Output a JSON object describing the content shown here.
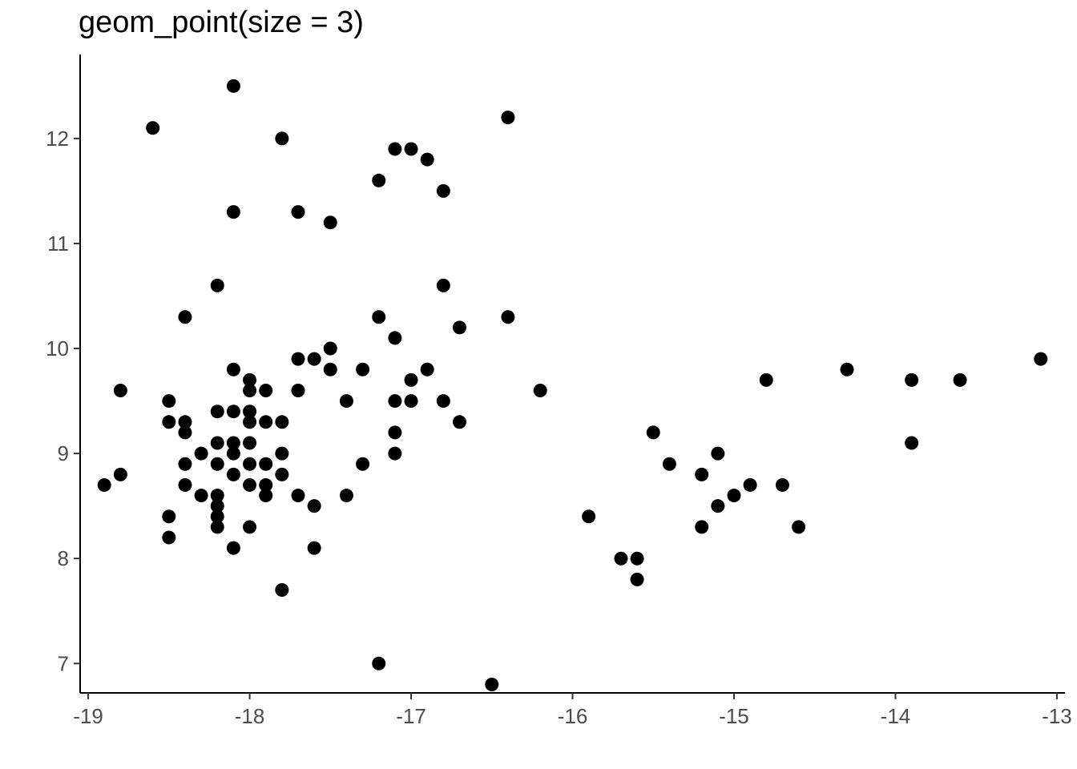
{
  "chart_data": {
    "type": "scatter",
    "title": "geom_point(size = 3)",
    "xlabel": "",
    "ylabel": "",
    "xlim": [
      -19.05,
      -12.95
    ],
    "ylim": [
      6.72,
      12.8
    ],
    "x_ticks": [
      -19,
      -18,
      -17,
      -16,
      -15,
      -14,
      -13
    ],
    "y_ticks": [
      7,
      8,
      9,
      10,
      11,
      12
    ],
    "grid": false,
    "point_color": "#000000",
    "points": [
      {
        "x": -18.1,
        "y": 12.5
      },
      {
        "x": -18.6,
        "y": 12.1
      },
      {
        "x": -17.8,
        "y": 12.0
      },
      {
        "x": -16.4,
        "y": 12.2
      },
      {
        "x": -17.1,
        "y": 11.9
      },
      {
        "x": -17.0,
        "y": 11.9
      },
      {
        "x": -16.9,
        "y": 11.8
      },
      {
        "x": -17.2,
        "y": 11.6
      },
      {
        "x": -16.8,
        "y": 11.5
      },
      {
        "x": -18.1,
        "y": 11.3
      },
      {
        "x": -17.7,
        "y": 11.3
      },
      {
        "x": -17.5,
        "y": 11.2
      },
      {
        "x": -18.2,
        "y": 10.6
      },
      {
        "x": -16.8,
        "y": 10.6
      },
      {
        "x": -18.4,
        "y": 10.3
      },
      {
        "x": -17.2,
        "y": 10.3
      },
      {
        "x": -16.4,
        "y": 10.3
      },
      {
        "x": -16.7,
        "y": 10.2
      },
      {
        "x": -17.1,
        "y": 10.1
      },
      {
        "x": -17.5,
        "y": 10.0
      },
      {
        "x": -17.7,
        "y": 9.9
      },
      {
        "x": -17.6,
        "y": 9.9
      },
      {
        "x": -13.1,
        "y": 9.9
      },
      {
        "x": -18.1,
        "y": 9.8
      },
      {
        "x": -17.5,
        "y": 9.8
      },
      {
        "x": -17.3,
        "y": 9.8
      },
      {
        "x": -16.9,
        "y": 9.8
      },
      {
        "x": -14.3,
        "y": 9.8
      },
      {
        "x": -18.0,
        "y": 9.7
      },
      {
        "x": -17.0,
        "y": 9.7
      },
      {
        "x": -14.8,
        "y": 9.7
      },
      {
        "x": -13.9,
        "y": 9.7
      },
      {
        "x": -13.6,
        "y": 9.7
      },
      {
        "x": -18.8,
        "y": 9.6
      },
      {
        "x": -18.0,
        "y": 9.6
      },
      {
        "x": -17.9,
        "y": 9.6
      },
      {
        "x": -17.7,
        "y": 9.6
      },
      {
        "x": -16.2,
        "y": 9.6
      },
      {
        "x": -18.5,
        "y": 9.5
      },
      {
        "x": -17.4,
        "y": 9.5
      },
      {
        "x": -17.1,
        "y": 9.5
      },
      {
        "x": -17.0,
        "y": 9.5
      },
      {
        "x": -16.8,
        "y": 9.5
      },
      {
        "x": -18.2,
        "y": 9.4
      },
      {
        "x": -18.1,
        "y": 9.4
      },
      {
        "x": -18.0,
        "y": 9.4
      },
      {
        "x": -18.5,
        "y": 9.3
      },
      {
        "x": -18.4,
        "y": 9.3
      },
      {
        "x": -18.0,
        "y": 9.3
      },
      {
        "x": -17.9,
        "y": 9.3
      },
      {
        "x": -17.8,
        "y": 9.3
      },
      {
        "x": -16.7,
        "y": 9.3
      },
      {
        "x": -18.4,
        "y": 9.2
      },
      {
        "x": -17.1,
        "y": 9.2
      },
      {
        "x": -15.5,
        "y": 9.2
      },
      {
        "x": -18.2,
        "y": 9.1
      },
      {
        "x": -18.1,
        "y": 9.1
      },
      {
        "x": -18.0,
        "y": 9.1
      },
      {
        "x": -13.9,
        "y": 9.1
      },
      {
        "x": -18.3,
        "y": 9.0
      },
      {
        "x": -18.1,
        "y": 9.0
      },
      {
        "x": -17.8,
        "y": 9.0
      },
      {
        "x": -17.1,
        "y": 9.0
      },
      {
        "x": -15.1,
        "y": 9.0
      },
      {
        "x": -18.4,
        "y": 8.9
      },
      {
        "x": -18.2,
        "y": 8.9
      },
      {
        "x": -18.0,
        "y": 8.9
      },
      {
        "x": -17.9,
        "y": 8.9
      },
      {
        "x": -17.3,
        "y": 8.9
      },
      {
        "x": -15.4,
        "y": 8.9
      },
      {
        "x": -18.8,
        "y": 8.8
      },
      {
        "x": -18.1,
        "y": 8.8
      },
      {
        "x": -17.8,
        "y": 8.8
      },
      {
        "x": -15.2,
        "y": 8.8
      },
      {
        "x": -18.9,
        "y": 8.7
      },
      {
        "x": -18.4,
        "y": 8.7
      },
      {
        "x": -18.0,
        "y": 8.7
      },
      {
        "x": -17.9,
        "y": 8.7
      },
      {
        "x": -14.9,
        "y": 8.7
      },
      {
        "x": -14.7,
        "y": 8.7
      },
      {
        "x": -18.3,
        "y": 8.6
      },
      {
        "x": -18.2,
        "y": 8.6
      },
      {
        "x": -17.9,
        "y": 8.6
      },
      {
        "x": -17.7,
        "y": 8.6
      },
      {
        "x": -17.4,
        "y": 8.6
      },
      {
        "x": -15.0,
        "y": 8.6
      },
      {
        "x": -18.2,
        "y": 8.5
      },
      {
        "x": -17.6,
        "y": 8.5
      },
      {
        "x": -15.1,
        "y": 8.5
      },
      {
        "x": -18.5,
        "y": 8.4
      },
      {
        "x": -18.2,
        "y": 8.4
      },
      {
        "x": -15.9,
        "y": 8.4
      },
      {
        "x": -18.2,
        "y": 8.3
      },
      {
        "x": -18.0,
        "y": 8.3
      },
      {
        "x": -15.2,
        "y": 8.3
      },
      {
        "x": -14.6,
        "y": 8.3
      },
      {
        "x": -18.5,
        "y": 8.2
      },
      {
        "x": -18.1,
        "y": 8.1
      },
      {
        "x": -17.6,
        "y": 8.1
      },
      {
        "x": -15.7,
        "y": 8.0
      },
      {
        "x": -15.6,
        "y": 8.0
      },
      {
        "x": -15.6,
        "y": 7.8
      },
      {
        "x": -17.8,
        "y": 7.7
      },
      {
        "x": -17.2,
        "y": 7.0
      },
      {
        "x": -16.5,
        "y": 6.8
      }
    ]
  }
}
